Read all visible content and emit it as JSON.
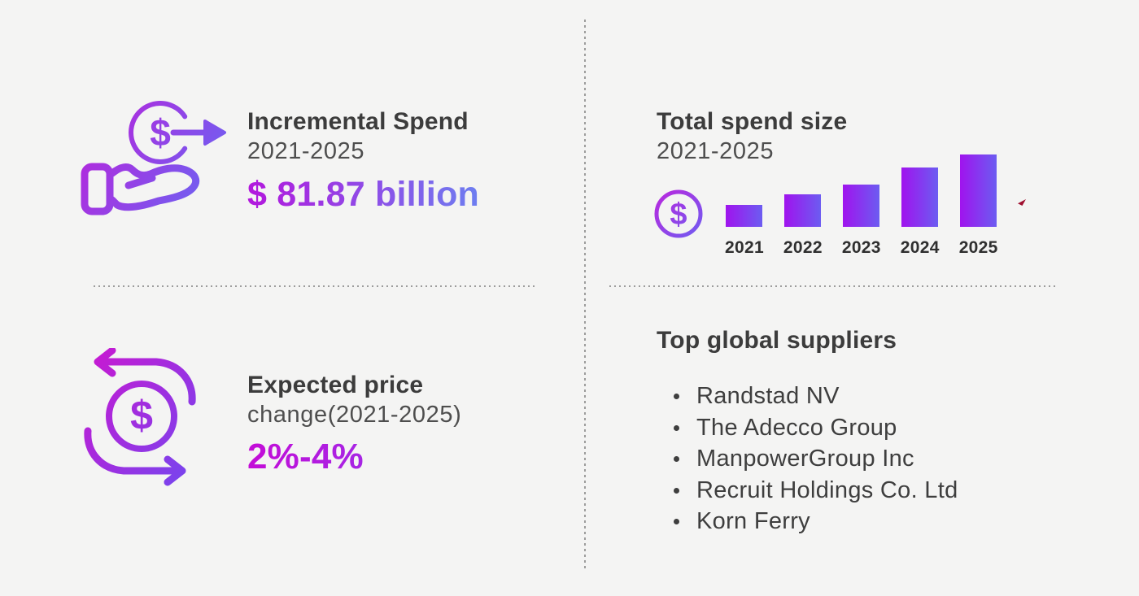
{
  "colors": {
    "canvas_bg": "#f4f4f3",
    "heading": "#3c3c3c",
    "subtitle": "#4e4e4e",
    "list_text": "#3e3e3e",
    "divider": "#9c9c9c",
    "accent_magenta": "#c21cd8",
    "accent_purple": "#8e3af0",
    "accent_blue": "#6d7ef0",
    "bar_gradient_start": "#a013ee",
    "bar_gradient_end": "#6c5cf1",
    "red_speck": "#a01030"
  },
  "incremental_spend": {
    "title": "Incremental Spend",
    "subtitle": "2021-2025",
    "value": "$ 81.87 billion",
    "icon": "hand-coin-arrow-icon"
  },
  "total_spend": {
    "title": "Total spend size",
    "subtitle": "2021-2025",
    "icon": "dollar-coin-icon"
  },
  "chart_data": {
    "type": "bar",
    "title": "Total spend size 2021-2025",
    "categories": [
      "2021",
      "2022",
      "2023",
      "2024",
      "2025"
    ],
    "values": [
      30,
      45,
      58,
      82,
      100
    ],
    "values_note": "relative bar heights, % of 2025 bar; no numeric axis shown in image",
    "xlabel": "",
    "ylabel": "",
    "grid": false,
    "legend": false,
    "axes_labeled": false
  },
  "expected_price": {
    "title": "Expected price",
    "subtitle": "change(2021-2025)",
    "value": "2%-4%",
    "icon": "currency-cycle-icon"
  },
  "suppliers": {
    "title": "Top global suppliers",
    "items": [
      "Randstad NV",
      "The Adecco Group",
      "ManpowerGroup Inc",
      "Recruit Holdings Co. Ltd",
      "Korn Ferry"
    ]
  }
}
